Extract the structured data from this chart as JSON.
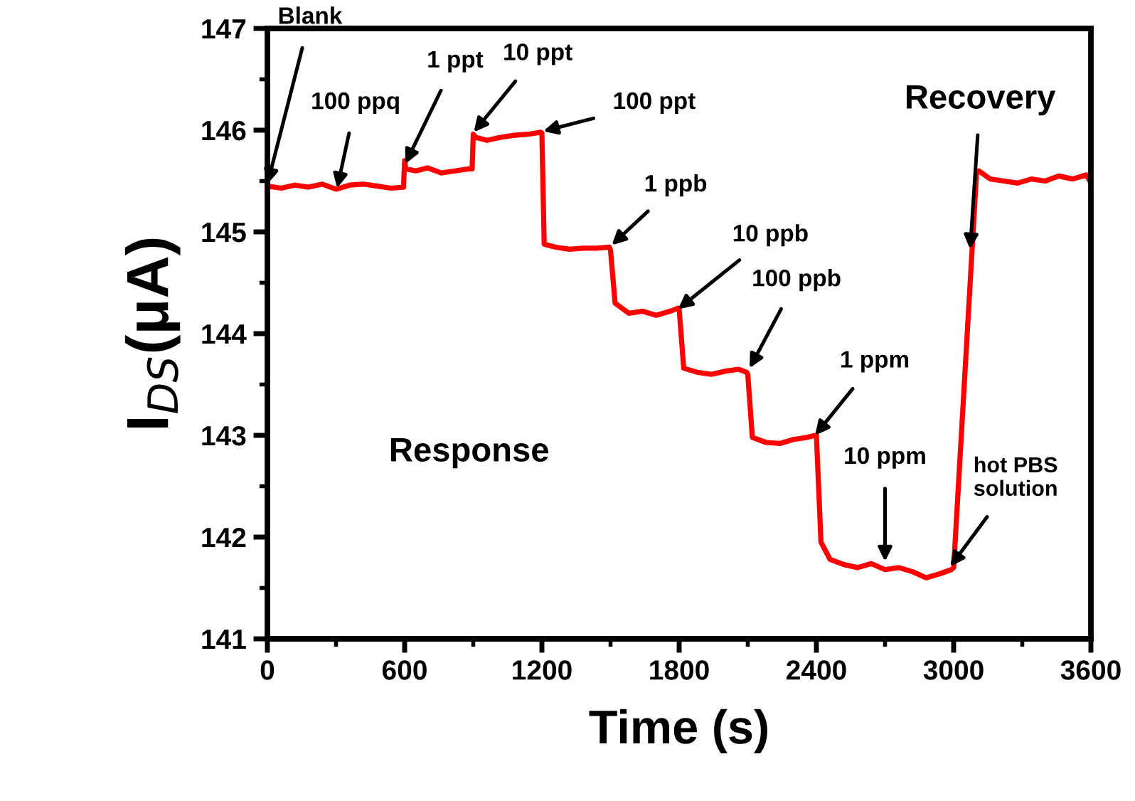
{
  "chart_data": {
    "type": "line",
    "xlabel": "Time (s)",
    "ylabel": "I$_{DS}$(μA)",
    "xlim": [
      0,
      3600
    ],
    "xticks": [
      0,
      600,
      1200,
      1800,
      2400,
      3000,
      3600
    ],
    "ylim": [
      141,
      147
    ],
    "yticks": [
      141,
      142,
      143,
      144,
      145,
      146,
      147
    ],
    "grid": false,
    "legend": false,
    "marker": "none",
    "line_style": "solid",
    "series": [
      {
        "color": "#ff0000",
        "x": [
          0,
          60,
          120,
          180,
          240,
          300,
          360,
          420,
          480,
          540,
          595,
          600,
          605,
          650,
          700,
          760,
          820,
          880,
          895,
          900,
          910,
          960,
          1020,
          1080,
          1140,
          1195,
          1200,
          1210,
          1260,
          1320,
          1380,
          1440,
          1495,
          1500,
          1520,
          1580,
          1640,
          1700,
          1760,
          1795,
          1800,
          1820,
          1880,
          1940,
          2000,
          2060,
          2095,
          2100,
          2120,
          2180,
          2240,
          2300,
          2360,
          2395,
          2400,
          2420,
          2460,
          2520,
          2580,
          2640,
          2700,
          2760,
          2820,
          2880,
          2940,
          2990,
          3000,
          3100,
          3110,
          3160,
          3220,
          3280,
          3340,
          3400,
          3460,
          3520,
          3580,
          3600
        ],
        "values": [
          145.45,
          145.43,
          145.46,
          145.44,
          145.47,
          145.42,
          145.46,
          145.47,
          145.45,
          145.43,
          145.44,
          145.7,
          145.62,
          145.6,
          145.63,
          145.58,
          145.6,
          145.62,
          145.62,
          145.96,
          145.93,
          145.9,
          145.93,
          145.95,
          145.96,
          145.98,
          145.97,
          144.88,
          144.85,
          144.83,
          144.84,
          144.84,
          144.85,
          144.82,
          144.3,
          144.2,
          144.22,
          144.18,
          144.22,
          144.25,
          144.24,
          143.66,
          143.62,
          143.6,
          143.63,
          143.65,
          143.62,
          143.6,
          142.98,
          142.93,
          142.92,
          142.96,
          142.98,
          143.0,
          143.0,
          141.95,
          141.78,
          141.73,
          141.7,
          141.74,
          141.68,
          141.7,
          141.66,
          141.6,
          141.64,
          141.68,
          141.7,
          145.58,
          145.6,
          145.52,
          145.5,
          145.48,
          145.52,
          145.5,
          145.55,
          145.52,
          145.56,
          145.48
        ]
      }
    ],
    "annotations": [
      {
        "text": "Blank",
        "x": 0,
        "y": 145.47
      },
      {
        "text": "100 ppq",
        "x": 305,
        "y": 145.43
      },
      {
        "text": "1 ppt",
        "x": 603,
        "y": 145.67
      },
      {
        "text": "10 ppt",
        "x": 902,
        "y": 145.98
      },
      {
        "text": "100 ppt",
        "x": 1206,
        "y": 145.99
      },
      {
        "text": "1 ppb",
        "x": 1505,
        "y": 144.87
      },
      {
        "text": "10 ppb",
        "x": 1795,
        "y": 144.24
      },
      {
        "text": "100 ppb",
        "x": 2108,
        "y": 143.66
      },
      {
        "text": "1 ppm",
        "x": 2394,
        "y": 143.0
      },
      {
        "text": "10 ppm",
        "x": 2700,
        "y": 141.76
      },
      {
        "text": "hot PBS\nsolution",
        "x": 2985,
        "y": 141.71
      },
      {
        "text": "Recovery",
        "x": 3072,
        "y": 144.83
      },
      "Response"
    ]
  }
}
